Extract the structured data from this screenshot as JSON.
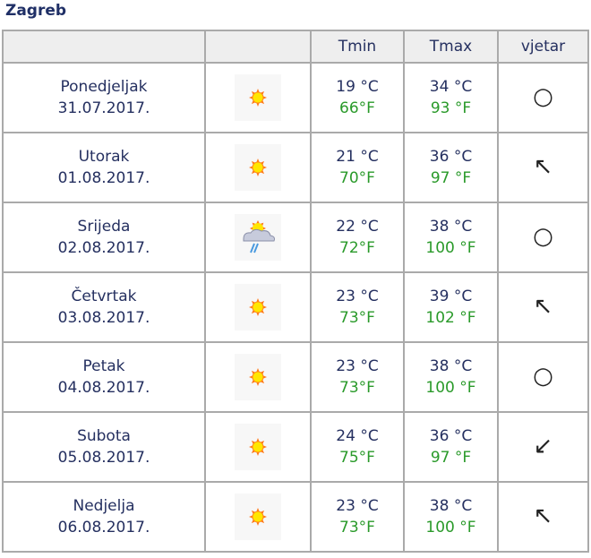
{
  "title": "Zagreb",
  "headers": [
    "",
    "",
    "Tmin",
    "Tmax",
    "vjetar"
  ],
  "colors": {
    "celsius": "#253060",
    "fahrenheit": "#2a9a2a",
    "header_bg": "#eeeeee"
  },
  "rows": [
    {
      "day": "Ponedjeljak",
      "date": "31.07.2017.",
      "icon": "sunny-icon",
      "tmin_c": "19 °C",
      "tmin_f": "66°F",
      "tmax_c": "34 °C",
      "tmax_f": "93 °F",
      "wind": "○",
      "wind_icon": "calm-circle-icon"
    },
    {
      "day": "Utorak",
      "date": "01.08.2017.",
      "icon": "sunny-icon",
      "tmin_c": "21 °C",
      "tmin_f": "70°F",
      "tmax_c": "36 °C",
      "tmax_f": "97 °F",
      "wind": "↖",
      "wind_icon": "arrow-northwest-icon"
    },
    {
      "day": "Srijeda",
      "date": "02.08.2017.",
      "icon": "sun-cloud-rain-icon",
      "tmin_c": "22 °C",
      "tmin_f": "72°F",
      "tmax_c": "38 °C",
      "tmax_f": "100 °F",
      "wind": "○",
      "wind_icon": "calm-circle-icon"
    },
    {
      "day": "Četvrtak",
      "date": "03.08.2017.",
      "icon": "sunny-icon",
      "tmin_c": "23 °C",
      "tmin_f": "73°F",
      "tmax_c": "39 °C",
      "tmax_f": "102 °F",
      "wind": "↖",
      "wind_icon": "arrow-northwest-icon"
    },
    {
      "day": "Petak",
      "date": "04.08.2017.",
      "icon": "sunny-icon",
      "tmin_c": "23 °C",
      "tmin_f": "73°F",
      "tmax_c": "38 °C",
      "tmax_f": "100 °F",
      "wind": "○",
      "wind_icon": "calm-circle-icon"
    },
    {
      "day": "Subota",
      "date": "05.08.2017.",
      "icon": "sunny-icon",
      "tmin_c": "24 °C",
      "tmin_f": "75°F",
      "tmax_c": "36 °C",
      "tmax_f": "97 °F",
      "wind": "↙",
      "wind_icon": "arrow-southwest-icon"
    },
    {
      "day": "Nedjelja",
      "date": "06.08.2017.",
      "icon": "sunny-icon",
      "tmin_c": "23 °C",
      "tmin_f": "73°F",
      "tmax_c": "38 °C",
      "tmax_f": "100 °F",
      "wind": "↖",
      "wind_icon": "arrow-northwest-icon"
    }
  ]
}
